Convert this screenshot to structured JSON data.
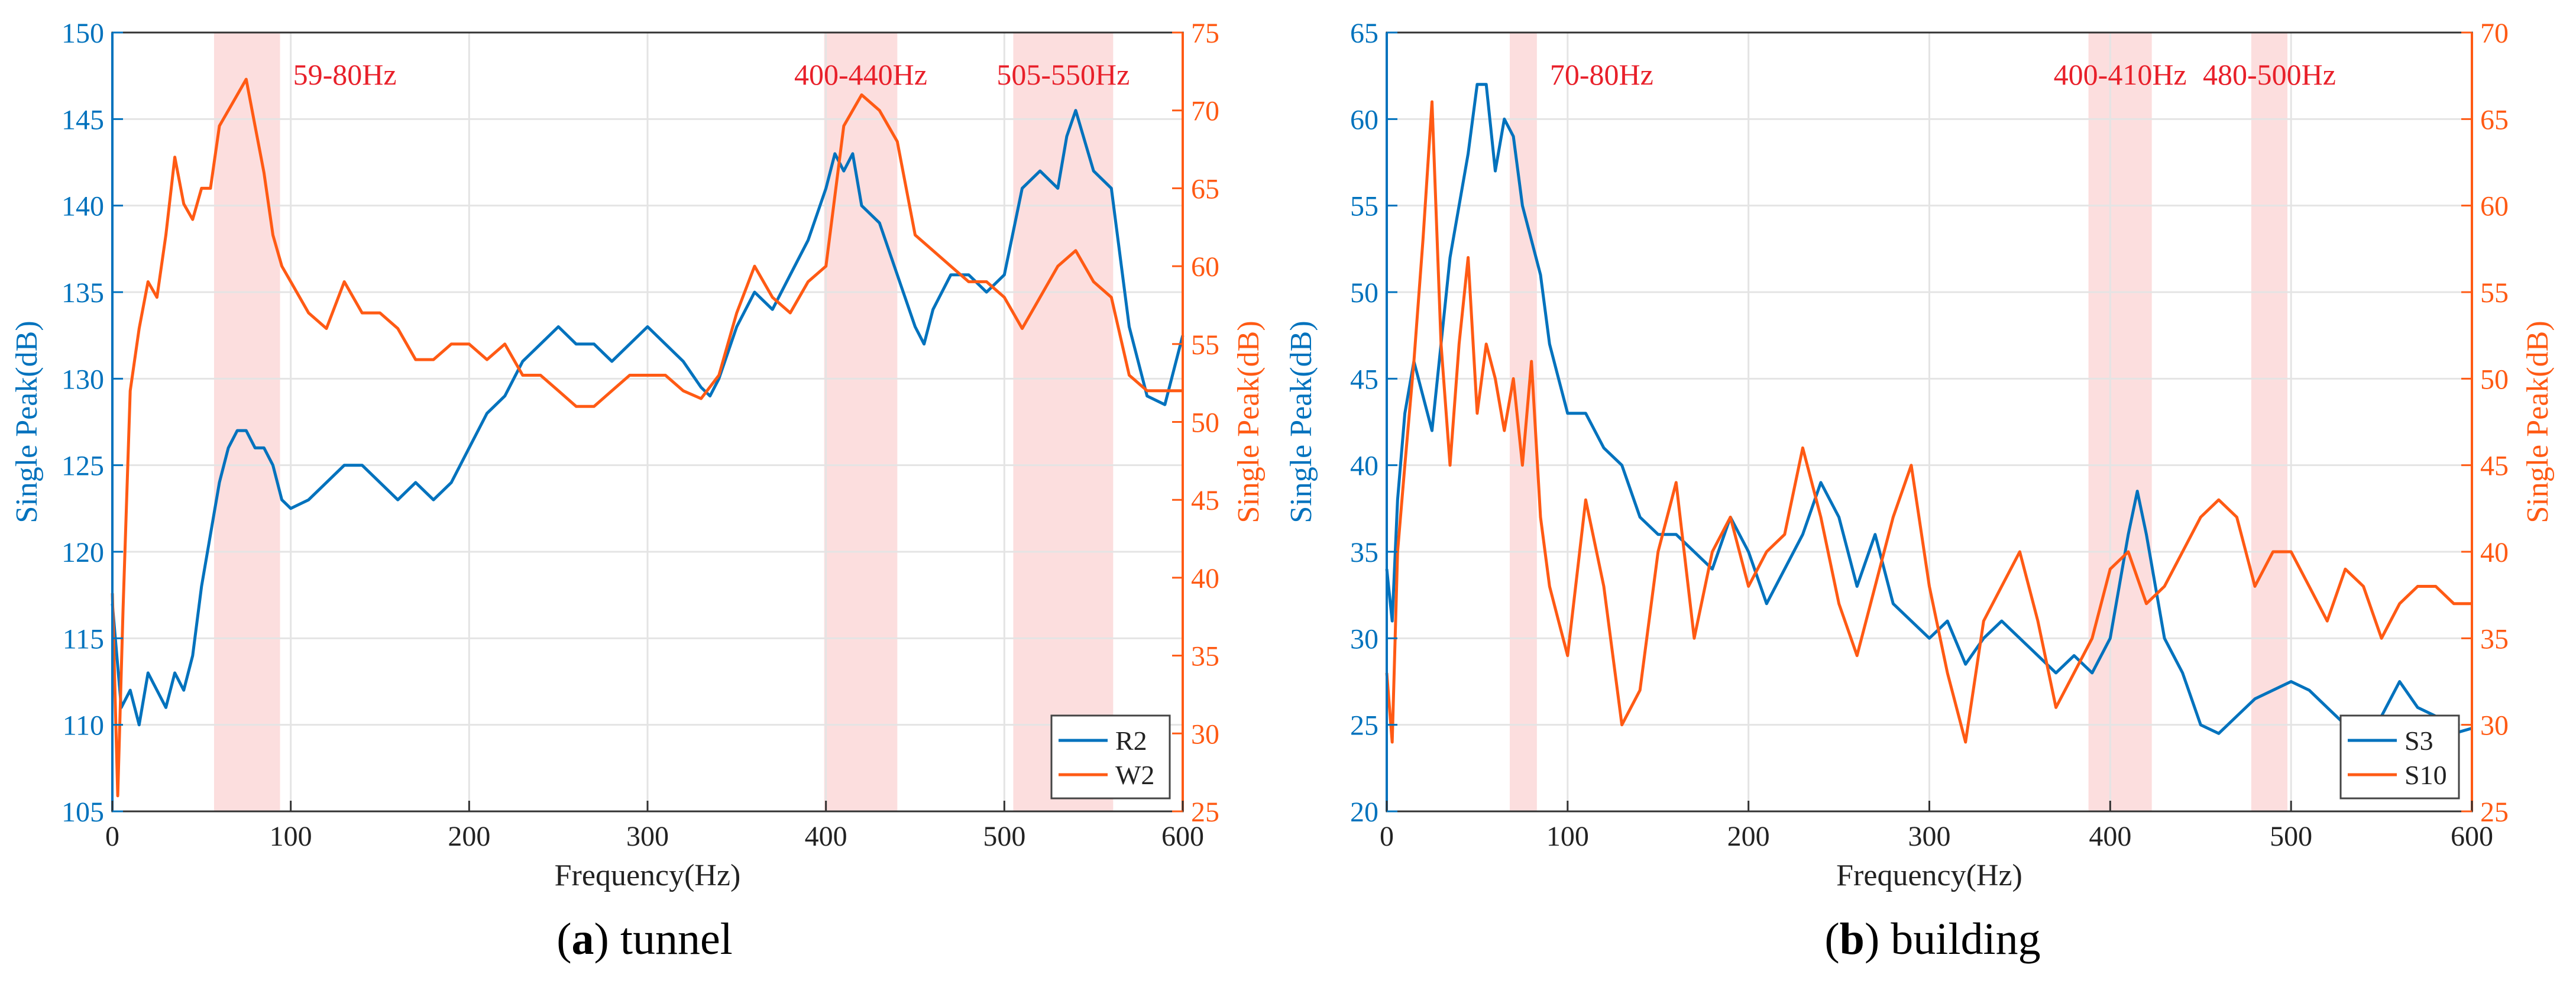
{
  "colors": {
    "blue": "#0072bd",
    "orange": "#ff5a14",
    "band": "#fcdede",
    "band_label": "#e8202a",
    "grid": "#e4e4e4",
    "axis": "#333333"
  },
  "chart_data": [
    {
      "type": "line",
      "panel": "a",
      "caption_letter": "a",
      "caption_text": " tunnel",
      "xlabel": "Frequency(Hz)",
      "ylabel_left": "Single Peak(dB)",
      "ylabel_right": "Single Peak(dB)",
      "xlim": [
        0,
        600
      ],
      "ylim_left": [
        105,
        150
      ],
      "ylim_right": [
        25,
        75
      ],
      "xticks": [
        0,
        100,
        200,
        300,
        400,
        500,
        600
      ],
      "yticks_left": [
        105,
        110,
        115,
        120,
        125,
        130,
        135,
        140,
        145,
        150
      ],
      "yticks_right": [
        25,
        30,
        35,
        40,
        45,
        50,
        55,
        60,
        65,
        70,
        75
      ],
      "grid": true,
      "legend_position": "bottom-right",
      "bands": [
        {
          "label": "59-80Hz",
          "from": 57,
          "to": 94
        },
        {
          "label": "400-440Hz",
          "from": 399,
          "to": 440
        },
        {
          "label": "505-550Hz",
          "from": 505,
          "to": 561
        }
      ],
      "series": [
        {
          "name": "R2",
          "axis": "left",
          "color": "#0072bd",
          "x": [
            0,
            5,
            10,
            15,
            20,
            25,
            30,
            35,
            40,
            45,
            50,
            55,
            60,
            65,
            70,
            75,
            80,
            85,
            90,
            95,
            100,
            110,
            120,
            130,
            140,
            150,
            160,
            170,
            180,
            190,
            200,
            210,
            220,
            230,
            240,
            250,
            260,
            270,
            280,
            290,
            300,
            310,
            320,
            330,
            335,
            340,
            350,
            360,
            370,
            380,
            390,
            400,
            405,
            410,
            415,
            420,
            430,
            440,
            450,
            455,
            460,
            470,
            480,
            490,
            500,
            510,
            520,
            530,
            535,
            540,
            550,
            560,
            570,
            580,
            590,
            600
          ],
          "y": [
            117,
            111,
            112,
            110,
            113,
            112,
            111,
            113,
            112,
            114,
            118,
            121,
            124,
            126,
            127,
            127,
            126,
            126,
            125,
            123,
            122.5,
            123,
            124,
            125,
            125,
            124,
            123,
            124,
            123,
            124,
            126,
            128,
            129,
            131,
            132,
            133,
            132,
            132,
            131,
            132,
            133,
            132,
            131,
            129.5,
            129,
            130,
            133,
            135,
            134,
            136,
            138,
            141,
            143,
            142,
            143,
            140,
            139,
            136,
            133,
            132,
            134,
            136,
            136,
            135,
            136,
            141,
            142,
            141,
            144,
            145.5,
            142,
            141,
            133,
            129,
            128.5,
            132.5
          ]
        },
        {
          "name": "W2",
          "axis": "right",
          "color": "#ff5a14",
          "x": [
            0,
            3,
            6,
            10,
            15,
            20,
            25,
            30,
            35,
            40,
            45,
            50,
            55,
            60,
            65,
            70,
            75,
            80,
            85,
            90,
            95,
            100,
            110,
            120,
            130,
            140,
            150,
            160,
            170,
            180,
            190,
            200,
            210,
            220,
            230,
            240,
            250,
            260,
            270,
            280,
            290,
            300,
            310,
            320,
            330,
            340,
            350,
            360,
            370,
            380,
            390,
            400,
            410,
            420,
            430,
            440,
            450,
            460,
            470,
            480,
            490,
            500,
            510,
            520,
            530,
            540,
            550,
            560,
            570,
            580,
            590,
            600
          ],
          "y": [
            39,
            26,
            38,
            52,
            56,
            59,
            58,
            62,
            67,
            64,
            63,
            65,
            65,
            69,
            70,
            71,
            72,
            69,
            66,
            62,
            60,
            59,
            57,
            56,
            59,
            57,
            57,
            56,
            54,
            54,
            55,
            55,
            54,
            55,
            53,
            53,
            52,
            51,
            51,
            52,
            53,
            53,
            53,
            52,
            51.5,
            53,
            57,
            60,
            58,
            57,
            59,
            60,
            69,
            71,
            70,
            68,
            62,
            61,
            60,
            59,
            59,
            58,
            56,
            58,
            60,
            61,
            59,
            58,
            53,
            52,
            52,
            52
          ]
        }
      ]
    },
    {
      "type": "line",
      "panel": "b",
      "caption_letter": "b",
      "caption_text": " building",
      "xlabel": "Frequency(Hz)",
      "ylabel_left": "Single Peak(dB)",
      "ylabel_right": "Single Peak(dB)",
      "xlim": [
        0,
        600
      ],
      "ylim_left": [
        20,
        65
      ],
      "ylim_right": [
        25,
        70
      ],
      "xticks": [
        0,
        100,
        200,
        300,
        400,
        500,
        600
      ],
      "yticks_left": [
        20,
        25,
        30,
        35,
        40,
        45,
        50,
        55,
        60,
        65
      ],
      "yticks_right": [
        25,
        30,
        35,
        40,
        45,
        50,
        55,
        60,
        65,
        70
      ],
      "grid": true,
      "legend_position": "bottom-right",
      "bands": [
        {
          "label": "70-80Hz",
          "from": 68,
          "to": 83
        },
        {
          "label": "400-410Hz",
          "from": 388,
          "to": 423
        },
        {
          "label": "480-500Hz",
          "from": 478,
          "to": 498
        }
      ],
      "series": [
        {
          "name": "S3",
          "axis": "left",
          "color": "#0072bd",
          "x": [
            0,
            3,
            6,
            10,
            15,
            20,
            25,
            30,
            35,
            40,
            45,
            50,
            55,
            60,
            65,
            70,
            75,
            80,
            85,
            90,
            95,
            100,
            110,
            120,
            130,
            140,
            150,
            160,
            170,
            180,
            190,
            200,
            210,
            220,
            230,
            240,
            250,
            260,
            270,
            280,
            290,
            300,
            310,
            320,
            330,
            340,
            350,
            360,
            370,
            380,
            390,
            400,
            405,
            410,
            415,
            420,
            430,
            440,
            450,
            460,
            470,
            480,
            490,
            500,
            510,
            520,
            530,
            540,
            550,
            560,
            570,
            580,
            590,
            600
          ],
          "y": [
            34,
            31,
            38,
            43,
            46,
            44,
            42,
            47,
            52,
            55,
            58,
            62,
            62,
            57,
            60,
            59,
            55,
            53,
            51,
            47,
            45,
            43,
            43,
            41,
            40,
            37,
            36,
            36,
            35,
            34,
            37,
            35,
            32,
            34,
            36,
            39,
            37,
            33,
            36,
            32,
            31,
            30,
            31,
            28.5,
            30,
            31,
            30,
            29,
            28,
            29,
            28,
            30,
            33,
            36,
            38.5,
            36,
            30,
            28,
            25,
            24.5,
            25.5,
            26.5,
            27,
            27.5,
            27,
            26,
            25,
            24.5,
            25.5,
            27.5,
            26,
            25.5,
            24.5,
            24.8
          ]
        },
        {
          "name": "S10",
          "axis": "right",
          "color": "#ff5a14",
          "x": [
            0,
            3,
            6,
            10,
            15,
            20,
            25,
            30,
            35,
            40,
            45,
            50,
            55,
            60,
            65,
            70,
            75,
            80,
            85,
            90,
            95,
            100,
            110,
            120,
            130,
            140,
            150,
            160,
            170,
            180,
            190,
            200,
            210,
            220,
            230,
            240,
            250,
            260,
            270,
            280,
            290,
            300,
            310,
            320,
            330,
            340,
            350,
            360,
            370,
            380,
            390,
            400,
            410,
            420,
            430,
            440,
            450,
            460,
            470,
            480,
            490,
            500,
            510,
            520,
            530,
            540,
            550,
            560,
            570,
            580,
            590,
            600
          ],
          "y": [
            33,
            29,
            40,
            45,
            51,
            58,
            66,
            52,
            45,
            52,
            57,
            48,
            52,
            50,
            47,
            50,
            45,
            51,
            42,
            38,
            36,
            34,
            43,
            38,
            30,
            32,
            40,
            44,
            35,
            40,
            42,
            38,
            40,
            41,
            46,
            42,
            37,
            34,
            38,
            42,
            45,
            38,
            33,
            29,
            36,
            38,
            40,
            36,
            31,
            33,
            35,
            39,
            40,
            37,
            38,
            40,
            42,
            43,
            42,
            38,
            40,
            40,
            38,
            36,
            39,
            38,
            35,
            37,
            38,
            38,
            37,
            37
          ]
        }
      ]
    }
  ]
}
